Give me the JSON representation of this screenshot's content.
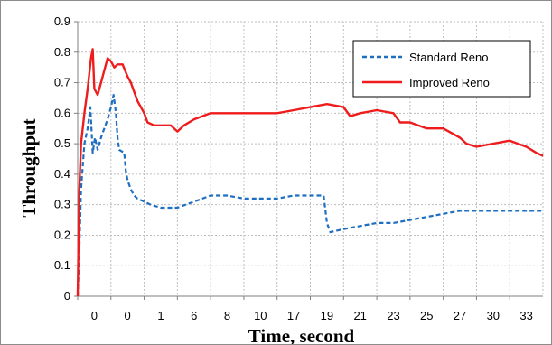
{
  "chart_data": {
    "type": "line",
    "title": "",
    "xlabel": "Time, second",
    "ylabel": "Throughput",
    "x_ticks": [
      "0",
      "0",
      "1",
      "6",
      "8",
      "10",
      "17",
      "19",
      "21",
      "23",
      "25",
      "27",
      "30",
      "33"
    ],
    "y_ticks": [
      "0",
      "0.1",
      "0.2",
      "0.3",
      "0.4",
      "0.5",
      "0.6",
      "0.7",
      "0.8",
      "0.9"
    ],
    "ylim": [
      0,
      0.9
    ],
    "grid": true,
    "legend_position": "top-right",
    "x_position_unit": "tick index (axis labels are non-uniform)",
    "series": [
      {
        "name": "Standard Reno",
        "style": "dashed",
        "color": "#1f6fc0",
        "points": [
          [
            0.0,
            0.0
          ],
          [
            0.05,
            0.15
          ],
          [
            0.1,
            0.35
          ],
          [
            0.2,
            0.5
          ],
          [
            0.3,
            0.55
          ],
          [
            0.38,
            0.62
          ],
          [
            0.45,
            0.47
          ],
          [
            0.52,
            0.52
          ],
          [
            0.6,
            0.48
          ],
          [
            0.7,
            0.52
          ],
          [
            0.8,
            0.55
          ],
          [
            0.9,
            0.58
          ],
          [
            1.0,
            0.62
          ],
          [
            1.08,
            0.66
          ],
          [
            1.15,
            0.6
          ],
          [
            1.2,
            0.52
          ],
          [
            1.25,
            0.48
          ],
          [
            1.4,
            0.47
          ],
          [
            1.45,
            0.41
          ],
          [
            1.5,
            0.38
          ],
          [
            1.6,
            0.35
          ],
          [
            1.7,
            0.33
          ],
          [
            1.8,
            0.32
          ],
          [
            2.0,
            0.31
          ],
          [
            2.2,
            0.3
          ],
          [
            2.5,
            0.29
          ],
          [
            3.0,
            0.29
          ],
          [
            3.5,
            0.31
          ],
          [
            4.0,
            0.33
          ],
          [
            4.5,
            0.33
          ],
          [
            5.0,
            0.32
          ],
          [
            5.5,
            0.32
          ],
          [
            6.0,
            0.32
          ],
          [
            6.5,
            0.33
          ],
          [
            7.0,
            0.33
          ],
          [
            7.4,
            0.33
          ],
          [
            7.5,
            0.24
          ],
          [
            7.6,
            0.21
          ],
          [
            8.0,
            0.22
          ],
          [
            8.5,
            0.23
          ],
          [
            9.0,
            0.24
          ],
          [
            9.5,
            0.24
          ],
          [
            10.0,
            0.25
          ],
          [
            10.5,
            0.26
          ],
          [
            11.0,
            0.27
          ],
          [
            11.5,
            0.28
          ],
          [
            12.0,
            0.28
          ],
          [
            12.5,
            0.28
          ],
          [
            13.0,
            0.28
          ],
          [
            13.5,
            0.28
          ],
          [
            14.0,
            0.28
          ]
        ]
      },
      {
        "name": "Improved Reno",
        "style": "solid",
        "color": "#ee1c1c",
        "points": [
          [
            0.0,
            0.0
          ],
          [
            0.05,
            0.35
          ],
          [
            0.1,
            0.5
          ],
          [
            0.2,
            0.6
          ],
          [
            0.3,
            0.68
          ],
          [
            0.4,
            0.78
          ],
          [
            0.45,
            0.81
          ],
          [
            0.5,
            0.68
          ],
          [
            0.6,
            0.66
          ],
          [
            0.7,
            0.7
          ],
          [
            0.8,
            0.74
          ],
          [
            0.9,
            0.78
          ],
          [
            1.0,
            0.77
          ],
          [
            1.1,
            0.75
          ],
          [
            1.2,
            0.76
          ],
          [
            1.35,
            0.76
          ],
          [
            1.5,
            0.72
          ],
          [
            1.6,
            0.7
          ],
          [
            1.7,
            0.67
          ],
          [
            1.8,
            0.64
          ],
          [
            1.9,
            0.62
          ],
          [
            2.0,
            0.6
          ],
          [
            2.1,
            0.57
          ],
          [
            2.3,
            0.56
          ],
          [
            2.6,
            0.56
          ],
          [
            2.8,
            0.56
          ],
          [
            2.9,
            0.55
          ],
          [
            3.0,
            0.54
          ],
          [
            3.2,
            0.56
          ],
          [
            3.5,
            0.58
          ],
          [
            4.0,
            0.6
          ],
          [
            4.5,
            0.6
          ],
          [
            5.0,
            0.6
          ],
          [
            5.5,
            0.6
          ],
          [
            6.0,
            0.6
          ],
          [
            6.5,
            0.61
          ],
          [
            7.0,
            0.62
          ],
          [
            7.5,
            0.63
          ],
          [
            8.0,
            0.62
          ],
          [
            8.2,
            0.59
          ],
          [
            8.5,
            0.6
          ],
          [
            9.0,
            0.61
          ],
          [
            9.5,
            0.6
          ],
          [
            9.7,
            0.57
          ],
          [
            10.0,
            0.57
          ],
          [
            10.5,
            0.55
          ],
          [
            11.0,
            0.55
          ],
          [
            11.5,
            0.52
          ],
          [
            11.7,
            0.5
          ],
          [
            12.0,
            0.49
          ],
          [
            12.5,
            0.5
          ],
          [
            13.0,
            0.51
          ],
          [
            13.5,
            0.49
          ],
          [
            13.8,
            0.47
          ],
          [
            14.0,
            0.46
          ]
        ]
      }
    ]
  }
}
